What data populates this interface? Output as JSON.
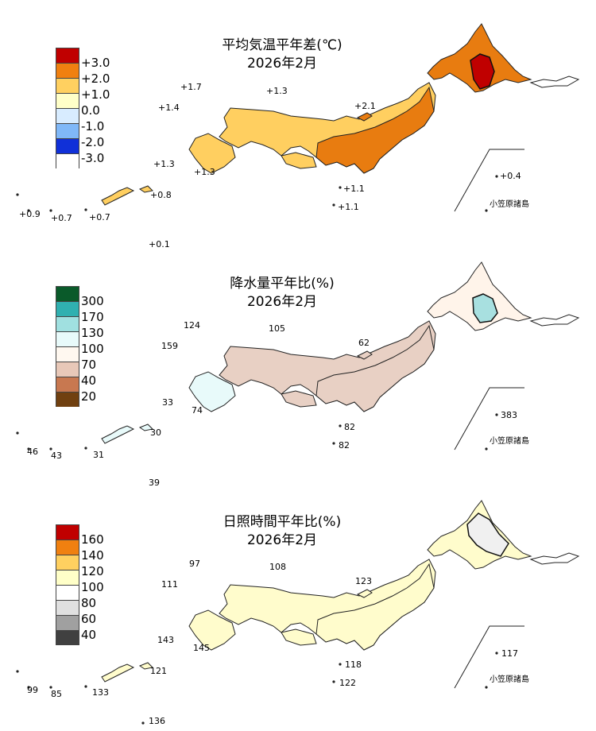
{
  "panels": [
    {
      "title": "平均気温平年差(℃)",
      "subtitle": "2026年2月",
      "legend": {
        "labels": [
          "+3.0",
          "+2.0",
          "+1.0",
          "0.0",
          "-1.0",
          "-2.0",
          "-3.0"
        ],
        "colors": [
          "#c00000",
          "#f08010",
          "#ffd060",
          "#ffffc8",
          "#d8ecff",
          "#80b8f8",
          "#1030d8"
        ]
      },
      "values": [
        "+1.7",
        "+1.3",
        "+1.4",
        "+2.1",
        "+1.3",
        "+1.3",
        "+0.8",
        "+0.9",
        "+0.7",
        "+0.7",
        "+1.1",
        "+1.1",
        "+0.4",
        "+0.1"
      ],
      "island_label": "小笠原諸島",
      "fills": {
        "north": "#e87c10",
        "core": "#c00000",
        "honshu_east": "#e87c10",
        "honshu_west": "#ffcf60",
        "kyushu": "#ffcf60",
        "shikoku": "#ffcf60"
      }
    },
    {
      "title": "降水量平年比(%)",
      "subtitle": "2026年2月",
      "legend": {
        "labels": [
          "300",
          "170",
          "130",
          "100",
          "70",
          "40",
          "20"
        ],
        "colors": [
          "#0a5a2a",
          "#30b0b0",
          "#a0e0e0",
          "#e8fafa",
          "#fff8f0",
          "#e8c8b8",
          "#c87850",
          "#704010"
        ]
      },
      "values": [
        "124",
        "105",
        "159",
        "62",
        "33",
        "74",
        "30",
        "46",
        "43",
        "31",
        "82",
        "82",
        "383",
        "39"
      ],
      "island_label": "小笠原諸島",
      "fills": {
        "north": "#fff4ea",
        "core": "#a8e0e0",
        "honshu_east": "#e8d0c4",
        "honshu_west": "#e8d0c4",
        "kyushu": "#e8fafa",
        "shikoku": "#e8d0c4"
      }
    },
    {
      "title": "日照時間平年比(%)",
      "subtitle": "2026年2月",
      "legend": {
        "labels": [
          "160",
          "140",
          "120",
          "100",
          "80",
          "60",
          "40"
        ],
        "colors": [
          "#c00000",
          "#f08010",
          "#ffd060",
          "#ffffc8",
          "#ffffff",
          "#e0e0e0",
          "#a0a0a0",
          "#404040"
        ]
      },
      "values": [
        "97",
        "108",
        "111",
        "123",
        "143",
        "145",
        "121",
        "99",
        "85",
        "133",
        "118",
        "122",
        "117",
        "136"
      ],
      "island_label": "小笠原諸島",
      "fills": {
        "north": "#fffccc",
        "core": "#f0f0f0",
        "honshu_east": "#fffccc",
        "honshu_west": "#fffccc",
        "kyushu": "#fffccc",
        "shikoku": "#fffccc"
      }
    }
  ]
}
